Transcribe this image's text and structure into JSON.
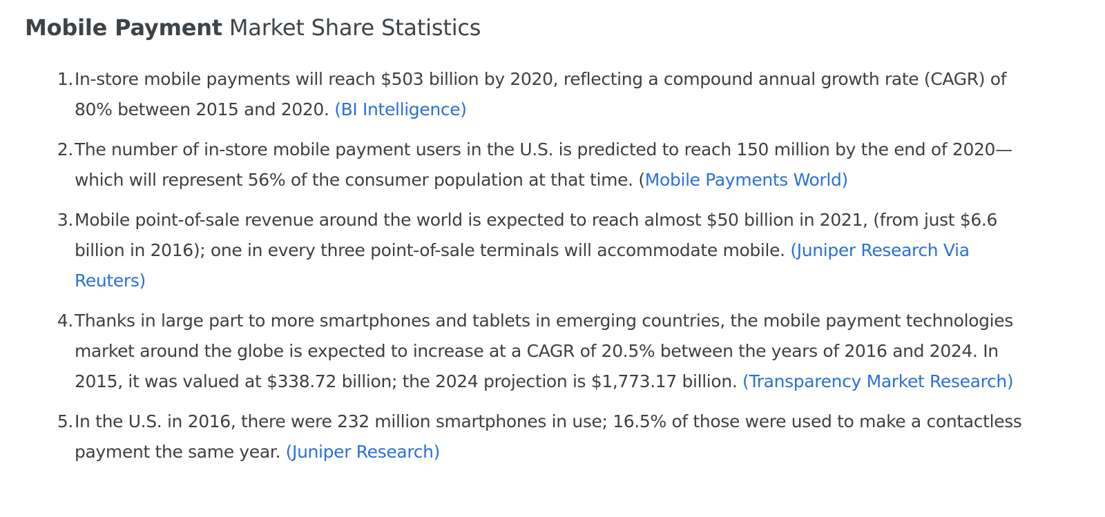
{
  "heading": {
    "bold": "Mobile Payment",
    "rest": " Market Share Statistics"
  },
  "stats": [
    {
      "number": "1.",
      "text": "In-store mobile payments will reach $503 billion by 2020, reflecting a compound annual growth rate (CAGR) of 80% between 2015 and 2020. ",
      "paren_open": "",
      "source": "(BI Intelligence)"
    },
    {
      "number": "2.",
      "text": "The number of in-store mobile payment users in the U.S. is predicted to reach 150 million by the end of 2020—which will represent 56% of the consumer population at that time. ",
      "paren_open": "(",
      "source": "Mobile Payments World)"
    },
    {
      "number": "3.",
      "text": "Mobile point-of-sale revenue around the world is expected to reach almost $50 billion in 2021, (from just $6.6 billion in 2016); one in every three point-of-sale terminals will accommodate mobile. ",
      "paren_open": "",
      "source": "(Juniper Research Via Reuters)"
    },
    {
      "number": "4.",
      "text": "Thanks in large part to more smartphones and tablets in emerging countries, the mobile payment technologies market around the globe is expected to increase at a CAGR of 20.5% between the years of 2016 and 2024. In 2015, it was valued at $338.72 billion; the 2024 projection is $1,773.17 billion. ",
      "paren_open": "",
      "source": "(Transparency Market Research)"
    },
    {
      "number": "5.",
      "text": "In the U.S. in 2016, there were 232 million smartphones in use; 16.5% of those were used to make a contactless payment the same year. ",
      "paren_open": "",
      "source": "(Juniper Research)"
    }
  ],
  "colors": {
    "text": "#3f3f3f",
    "heading": "#3d4347",
    "link": "#2a6fdb"
  }
}
